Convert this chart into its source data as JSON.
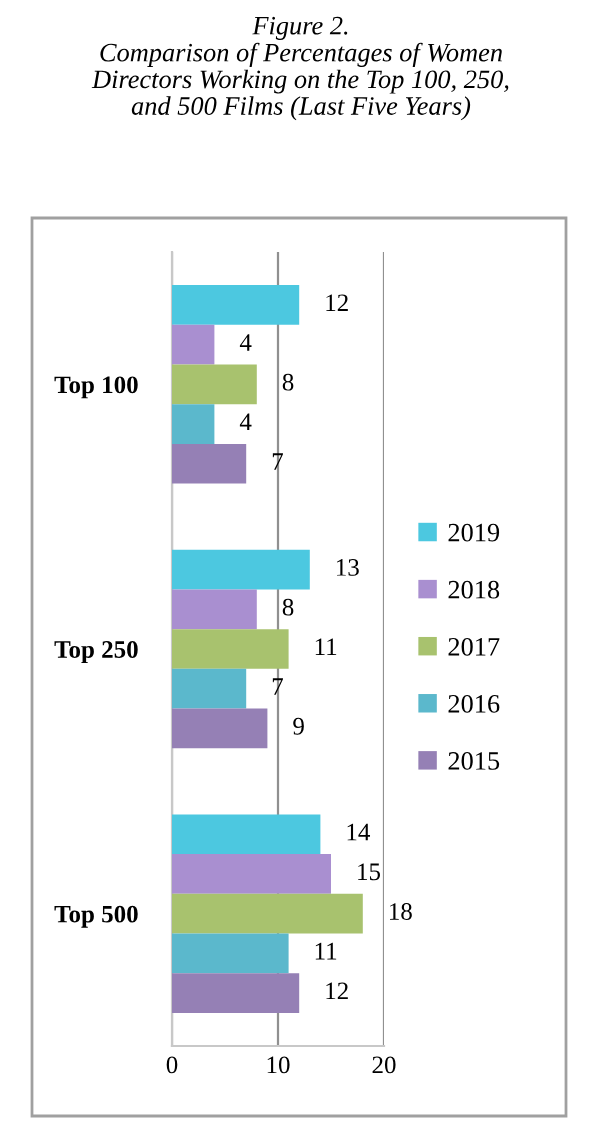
{
  "chart_data": {
    "type": "bar",
    "orientation": "horizontal",
    "title": "Figure 2.\nComparison of Percentages of Women\nDirectors Working on the Top 100, 250,\nand 500 Films (Last Five Years)",
    "categories": [
      "Top 100",
      "Top 250",
      "Top 500"
    ],
    "series": [
      {
        "name": "2019",
        "color": "#4cc8e0",
        "values": [
          12,
          13,
          14
        ]
      },
      {
        "name": "2018",
        "color": "#a98fd0",
        "values": [
          4,
          8,
          15
        ]
      },
      {
        "name": "2017",
        "color": "#a8c26e",
        "values": [
          8,
          11,
          18
        ]
      },
      {
        "name": "2016",
        "color": "#5bb8cc",
        "values": [
          4,
          7,
          11
        ]
      },
      {
        "name": "2015",
        "color": "#9580b5",
        "values": [
          7,
          9,
          12
        ]
      }
    ],
    "xlim": [
      0,
      20
    ],
    "xticks": [
      0,
      10,
      20
    ],
    "grid": "x",
    "legend": "right",
    "data_labels": true
  }
}
